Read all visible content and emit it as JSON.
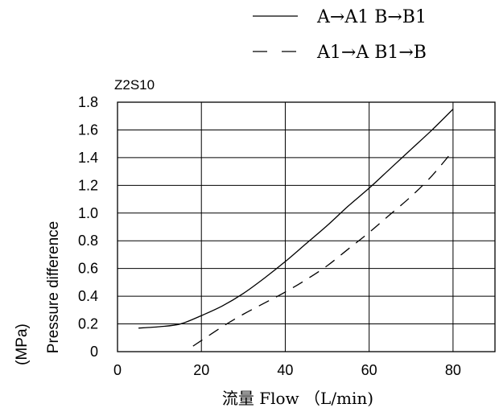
{
  "chart_data": {
    "type": "line",
    "title": "Z2S10",
    "xlabel": "流量 Flow （L/min)",
    "ylabel": "Pressure difference",
    "ylabel_unit": "(MPa)",
    "xlim": [
      0,
      90
    ],
    "ylim": [
      0,
      1.8
    ],
    "x_ticks": [
      0,
      20,
      40,
      60,
      80
    ],
    "y_ticks": [
      0,
      0.2,
      0.4,
      0.6,
      0.8,
      1.0,
      1.2,
      1.4,
      1.6,
      1.8
    ],
    "x_tick_labels": [
      "0",
      "20",
      "40",
      "60",
      "80"
    ],
    "y_tick_labels": [
      "0",
      "0.2",
      "0.4",
      "0.6",
      "0.8",
      "1.0",
      "1.2",
      "1.4",
      "1.6",
      "1.8"
    ],
    "grid": true,
    "legend_position": "top-right",
    "series": [
      {
        "name": "A→A1   B→B1",
        "style": "solid",
        "color": "#000000",
        "x": [
          5,
          10,
          15,
          20,
          25,
          30,
          35,
          40,
          45,
          50,
          55,
          60,
          65,
          70,
          75,
          80
        ],
        "y": [
          0.17,
          0.18,
          0.2,
          0.26,
          0.33,
          0.42,
          0.53,
          0.65,
          0.78,
          0.91,
          1.05,
          1.18,
          1.32,
          1.46,
          1.6,
          1.75
        ]
      },
      {
        "name": "A1→A   B1→B",
        "style": "dashed",
        "color": "#000000",
        "x": [
          18,
          20,
          25,
          30,
          35,
          40,
          45,
          50,
          55,
          60,
          65,
          70,
          75,
          80
        ],
        "y": [
          0.04,
          0.08,
          0.18,
          0.27,
          0.35,
          0.43,
          0.52,
          0.62,
          0.74,
          0.86,
          0.99,
          1.12,
          1.27,
          1.45
        ]
      }
    ]
  }
}
